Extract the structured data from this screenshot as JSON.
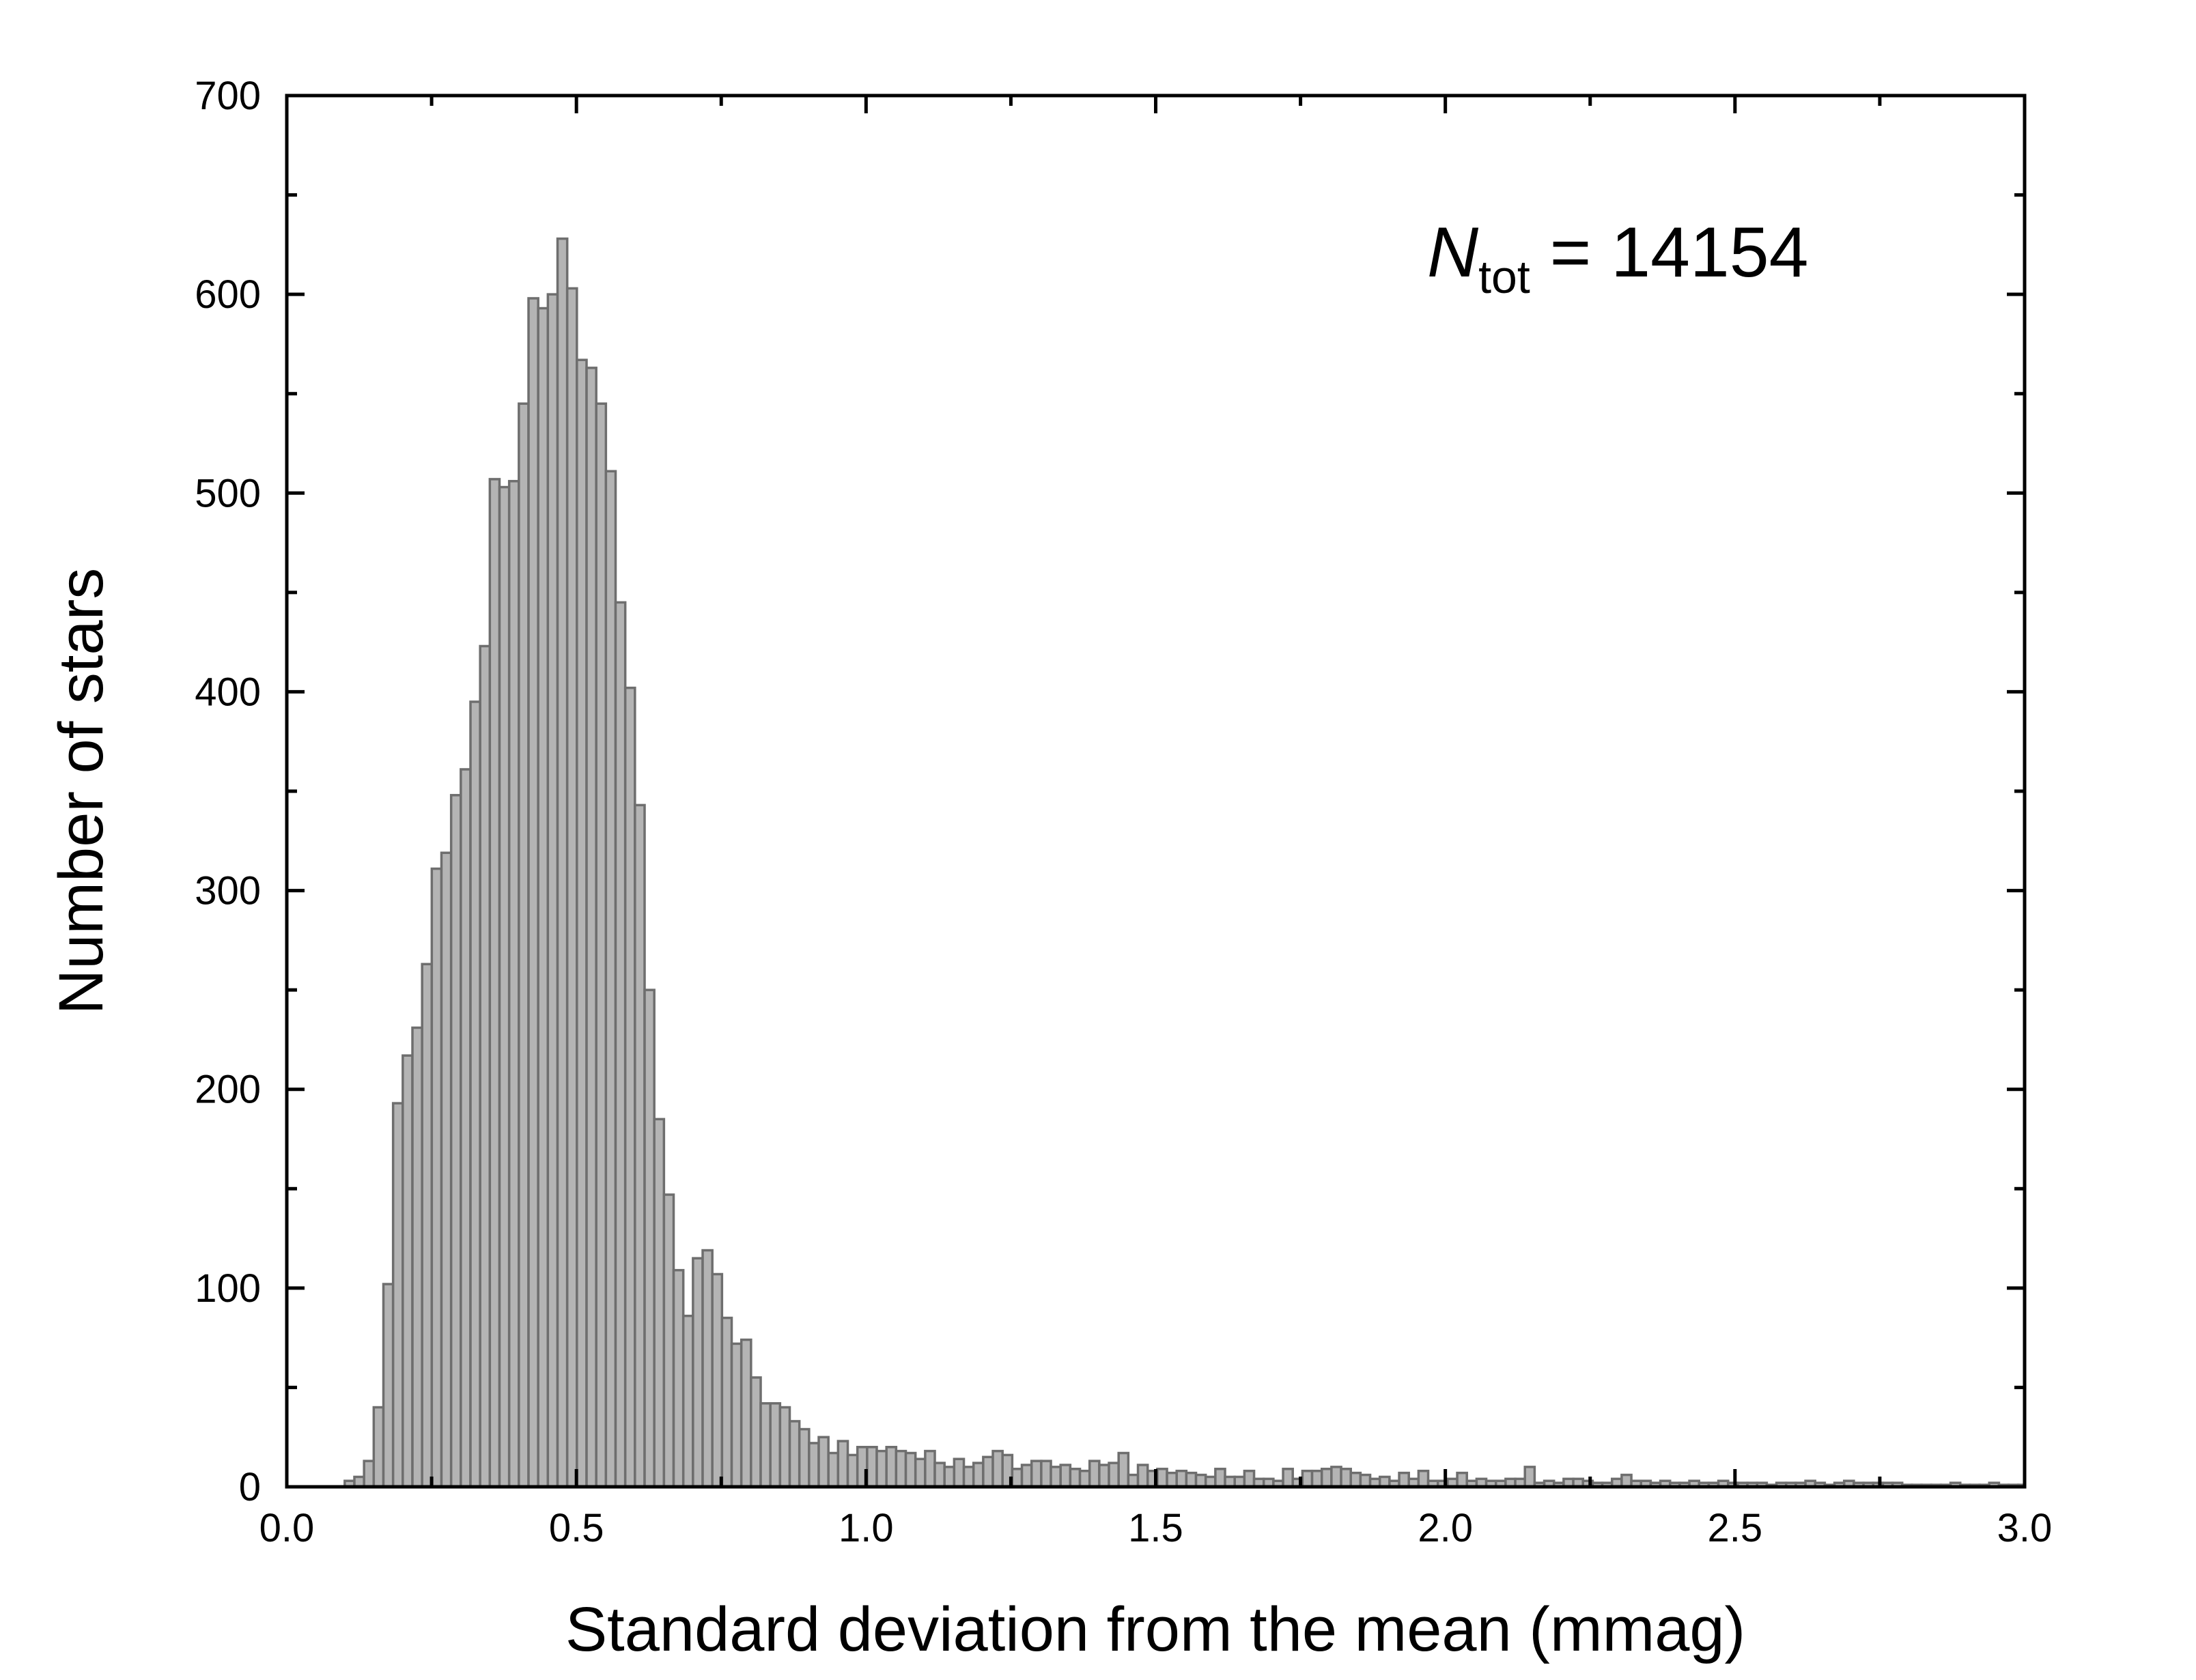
{
  "chart_data": {
    "type": "bar",
    "title": "",
    "xlabel": "Standard deviation from the mean  (mmag)",
    "ylabel": "Number of stars",
    "xlim": [
      0.0,
      3.0
    ],
    "ylim": [
      0,
      700
    ],
    "x_ticks": [
      "0.0",
      "0.5",
      "1.0",
      "1.5",
      "2.0",
      "2.5",
      "3.0"
    ],
    "y_ticks": [
      "0",
      "100",
      "200",
      "300",
      "400",
      "500",
      "600",
      "700"
    ],
    "bin_width": 0.0167,
    "bin_start": 0.1,
    "bar_fill": "#b4b4b4",
    "bar_stroke": "#6e6e6e",
    "grid": false,
    "annotation": {
      "symbol": "N",
      "subscript": "tot",
      "text": " = 14154"
    },
    "values": [
      3,
      5,
      13,
      40,
      102,
      193,
      217,
      231,
      263,
      311,
      319,
      348,
      361,
      395,
      423,
      507,
      503,
      506,
      545,
      598,
      593,
      600,
      628,
      603,
      567,
      563,
      545,
      511,
      445,
      402,
      343,
      250,
      185,
      147,
      109,
      86,
      115,
      119,
      107,
      85,
      72,
      74,
      55,
      42,
      42,
      40,
      33,
      29,
      22,
      25,
      17,
      23,
      16,
      20,
      20,
      18,
      20,
      18,
      17,
      14,
      18,
      12,
      10,
      14,
      10,
      12,
      15,
      18,
      16,
      9,
      11,
      13,
      13,
      10,
      11,
      9,
      8,
      13,
      11,
      12,
      17,
      6,
      11,
      8,
      9,
      7,
      8,
      7,
      6,
      5,
      9,
      5,
      5,
      8,
      4,
      4,
      3,
      9,
      4,
      8,
      8,
      9,
      10,
      9,
      7,
      6,
      4,
      5,
      3,
      7,
      4,
      8,
      3,
      3,
      4,
      7,
      3,
      4,
      3,
      3,
      4,
      4,
      10,
      2,
      3,
      2,
      4,
      4,
      3,
      2,
      2,
      4,
      6,
      3,
      3,
      2,
      3,
      2,
      2,
      3,
      2,
      2,
      3,
      2,
      2,
      2,
      2,
      1,
      2,
      2,
      2,
      3,
      2,
      1,
      2,
      3,
      2,
      2,
      2,
      2,
      2,
      1,
      1,
      1,
      1,
      1,
      2,
      1,
      1,
      1,
      2,
      1,
      1,
      1,
      1,
      1,
      1,
      1
    ]
  }
}
